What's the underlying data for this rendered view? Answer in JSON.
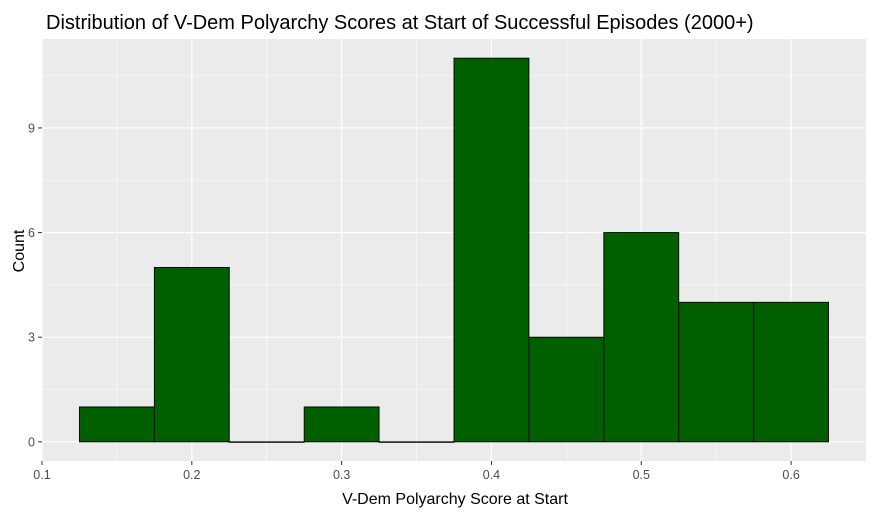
{
  "chart_data": {
    "type": "bar",
    "subtype": "histogram",
    "title": "Distribution of V-Dem Polyarchy Scores at Start of Successful Episodes (2000+)",
    "xlabel": "V-Dem Polyarchy Score at Start",
    "ylabel": "Count",
    "xlim": [
      0.1,
      0.65
    ],
    "ylim": [
      -0.55,
      11.55
    ],
    "xticks": [
      0.1,
      0.2,
      0.3,
      0.4,
      0.5,
      0.6
    ],
    "xtick_labels": [
      "0.1",
      "0.2",
      "0.3",
      "0.4",
      "0.5",
      "0.6"
    ],
    "yticks": [
      0,
      3,
      6,
      9
    ],
    "ytick_labels": [
      "0",
      "3",
      "6",
      "9"
    ],
    "bin_width": 0.05,
    "bins": [
      {
        "x0": 0.125,
        "x1": 0.175,
        "count": 1
      },
      {
        "x0": 0.175,
        "x1": 0.225,
        "count": 5
      },
      {
        "x0": 0.225,
        "x1": 0.275,
        "count": 0
      },
      {
        "x0": 0.275,
        "x1": 0.325,
        "count": 1
      },
      {
        "x0": 0.325,
        "x1": 0.375,
        "count": 0
      },
      {
        "x0": 0.375,
        "x1": 0.425,
        "count": 11
      },
      {
        "x0": 0.425,
        "x1": 0.475,
        "count": 3
      },
      {
        "x0": 0.475,
        "x1": 0.525,
        "count": 6
      },
      {
        "x0": 0.525,
        "x1": 0.575,
        "count": 4
      },
      {
        "x0": 0.575,
        "x1": 0.625,
        "count": 4
      }
    ],
    "grid": true,
    "legend": "none",
    "colors": {
      "bar_fill": "#006000",
      "bar_stroke": "#000000",
      "panel_background": "#ebebeb",
      "grid_major": "#ffffff"
    }
  }
}
